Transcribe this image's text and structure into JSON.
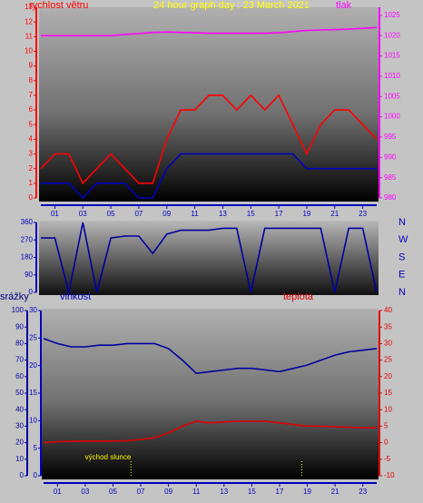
{
  "chart_data": [
    {
      "type": "line",
      "title": "24 hour graph day : 23 March 2021",
      "ylabel": "rychlost větru",
      "y2label": "tlak",
      "x": [
        0,
        1,
        2,
        3,
        4,
        5,
        6,
        7,
        8,
        9,
        10,
        11,
        12,
        13,
        14,
        15,
        16,
        17,
        18,
        19,
        20,
        21,
        22,
        23,
        24
      ],
      "xlim": [
        0,
        24
      ],
      "xticks": [
        {
          "value": 1,
          "label": "01"
        },
        {
          "value": 3,
          "label": "03"
        },
        {
          "value": 5,
          "label": "05"
        },
        {
          "value": 7,
          "label": "07"
        },
        {
          "value": 9,
          "label": "09"
        },
        {
          "value": 11,
          "label": "11"
        },
        {
          "value": 13,
          "label": "13"
        },
        {
          "value": 15,
          "label": "15"
        },
        {
          "value": 17,
          "label": "17"
        },
        {
          "value": 19,
          "label": "19"
        },
        {
          "value": 21,
          "label": "21"
        },
        {
          "value": 23,
          "label": "23"
        }
      ],
      "ylim": [
        0,
        13
      ],
      "yticks": [
        0,
        1,
        2,
        3,
        4,
        5,
        6,
        7,
        8,
        9,
        10,
        11,
        12,
        13
      ],
      "y2lim": [
        980,
        1027
      ],
      "y2ticks": [
        980,
        985,
        990,
        995,
        1000,
        1005,
        1010,
        1015,
        1020,
        1025
      ],
      "series": [
        {
          "color": "#ff0000",
          "axis": "y",
          "values": [
            2,
            3,
            3,
            1,
            2,
            3,
            2,
            1,
            1,
            4,
            6,
            6,
            7,
            7,
            6,
            7,
            6,
            7,
            5,
            3,
            5,
            6,
            6,
            5,
            4
          ]
        },
        {
          "color": "#0000c0",
          "axis": "y",
          "values": [
            1,
            1,
            1,
            0,
            1,
            1,
            1,
            0,
            0,
            2,
            3,
            3,
            3,
            3,
            3,
            3,
            3,
            3,
            3,
            2,
            2,
            2,
            2,
            2,
            2
          ]
        },
        {
          "color": "#ff00ff",
          "axis": "y2",
          "values": [
            1020,
            1020,
            1020,
            1020,
            1020,
            1020,
            1020.3,
            1020.5,
            1020.8,
            1020.9,
            1020.8,
            1020.7,
            1020.6,
            1020.6,
            1020.6,
            1020.6,
            1020.6,
            1020.7,
            1021,
            1021.3,
            1021.4,
            1021.5,
            1021.6,
            1021.8,
            1022
          ]
        }
      ]
    },
    {
      "type": "line",
      "x": [
        0,
        1,
        2,
        3,
        4,
        5,
        6,
        7,
        8,
        9,
        10,
        11,
        12,
        13,
        14,
        15,
        16,
        17,
        18,
        19,
        20,
        21,
        22,
        23,
        24
      ],
      "xlim": [
        0,
        24
      ],
      "ylim": [
        0,
        360
      ],
      "yticks": [
        0,
        90,
        180,
        270,
        360
      ],
      "y2lim": [
        0,
        360
      ],
      "y2ticks": [
        {
          "value": 360,
          "label": "N"
        },
        {
          "value": 270,
          "label": "W"
        },
        {
          "value": 180,
          "label": "S"
        },
        {
          "value": 90,
          "label": "E"
        },
        {
          "value": 0,
          "label": "N"
        }
      ],
      "series": [
        {
          "color": "#0000a0",
          "axis": "y",
          "values": [
            280,
            280,
            0,
            360,
            0,
            280,
            290,
            290,
            200,
            300,
            320,
            320,
            320,
            330,
            330,
            0,
            330,
            330,
            330,
            330,
            330,
            0,
            330,
            330,
            0
          ]
        }
      ]
    },
    {
      "type": "line",
      "ylabel": "srážky",
      "y3label": "vlhkost",
      "y2label": "teplota",
      "x": [
        0,
        1,
        2,
        3,
        4,
        5,
        6,
        7,
        8,
        9,
        10,
        11,
        12,
        13,
        14,
        15,
        16,
        17,
        18,
        19,
        20,
        21,
        22,
        23,
        24
      ],
      "xlim": [
        0,
        24
      ],
      "xticks": [
        {
          "value": 1,
          "label": "01"
        },
        {
          "value": 3,
          "label": "03"
        },
        {
          "value": 5,
          "label": "05"
        },
        {
          "value": 7,
          "label": "07"
        },
        {
          "value": 9,
          "label": "09"
        },
        {
          "value": 11,
          "label": "11"
        },
        {
          "value": 13,
          "label": "13"
        },
        {
          "value": 15,
          "label": "15"
        },
        {
          "value": 17,
          "label": "17"
        },
        {
          "value": 19,
          "label": "19"
        },
        {
          "value": 21,
          "label": "21"
        },
        {
          "value": 23,
          "label": "23"
        }
      ],
      "ylim": [
        0,
        100
      ],
      "yticks": [
        0,
        10,
        20,
        30,
        40,
        50,
        60,
        70,
        80,
        90,
        100
      ],
      "y3lim": [
        0,
        30
      ],
      "y3ticks": [
        0,
        5,
        10,
        15,
        20,
        25,
        30
      ],
      "y2lim": [
        -10,
        40
      ],
      "y2ticks": [
        -10,
        -5,
        0,
        5,
        10,
        15,
        20,
        25,
        30,
        35,
        40
      ],
      "series": [
        {
          "color": "#0000a0",
          "axis": "y",
          "values": [
            83,
            80,
            78,
            78,
            79,
            79,
            80,
            80,
            80,
            77,
            70,
            62,
            63,
            64,
            65,
            65,
            64,
            63,
            65,
            67,
            70,
            73,
            75,
            76,
            77
          ]
        },
        {
          "color": "#e00000",
          "axis": "y2",
          "values": [
            0,
            0.3,
            0.5,
            0.5,
            0.5,
            0.5,
            0.6,
            1,
            1.5,
            3,
            5,
            6.5,
            6,
            6.3,
            6.5,
            6.5,
            6.5,
            6,
            5.5,
            5,
            5,
            4.8,
            4.7,
            4.5,
            4.5
          ]
        }
      ],
      "events": [
        {
          "label": "východ slunce",
          "x": 6.3
        },
        {
          "x": 18.6
        }
      ]
    }
  ]
}
